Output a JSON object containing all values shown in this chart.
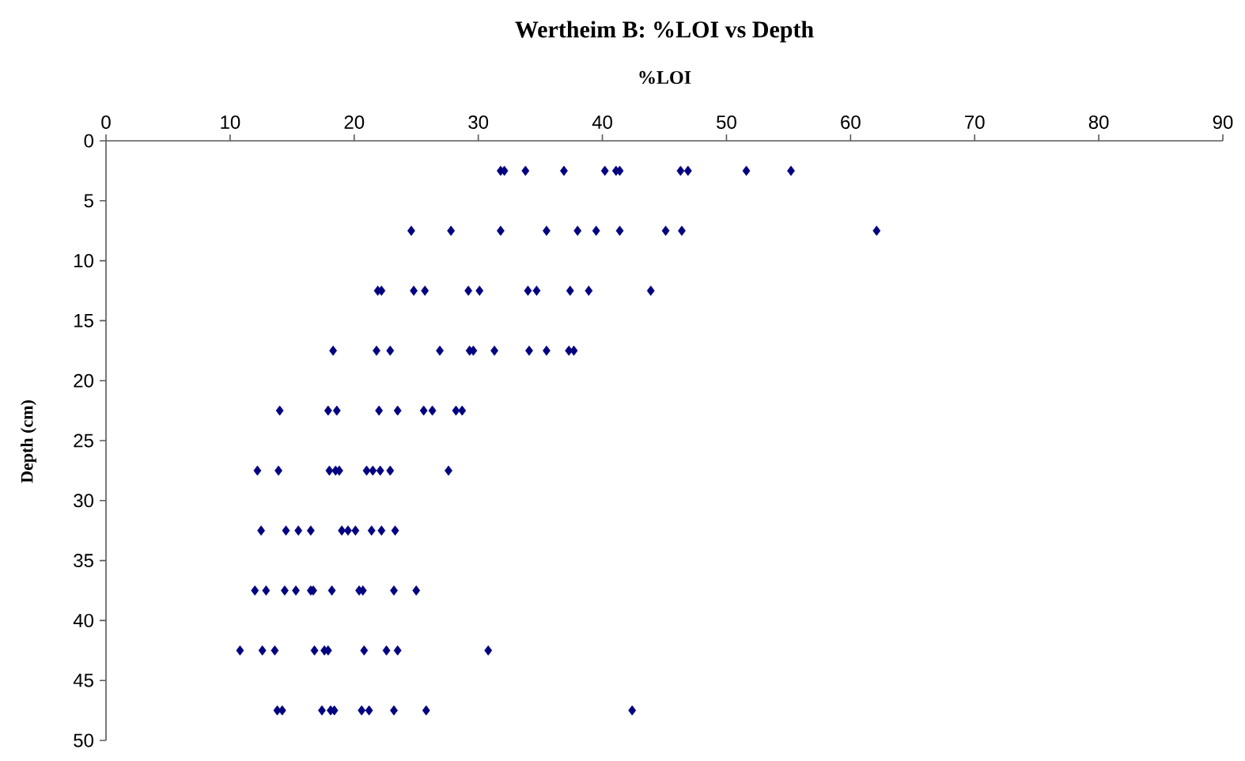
{
  "chart_data": {
    "type": "scatter",
    "title": "Wertheim B:  %LOI vs Depth",
    "xlabel": "%LOI",
    "ylabel": "Depth (cm)",
    "xlim": [
      0,
      90
    ],
    "xticks": [
      0,
      10,
      20,
      30,
      40,
      50,
      60,
      70,
      80,
      90
    ],
    "ylim": [
      50,
      0
    ],
    "yticks": [
      0,
      5,
      10,
      15,
      20,
      25,
      30,
      35,
      40,
      45,
      50
    ],
    "grid": false,
    "marker": "diamond",
    "series": [
      {
        "color": "#000080",
        "x": [
          31.8,
          32.1,
          33.8,
          36.9,
          40.2,
          41.1,
          41.4,
          46.3,
          46.9,
          51.6,
          55.2,
          24.6,
          27.8,
          31.8,
          35.5,
          38.0,
          39.5,
          41.4,
          45.1,
          46.4,
          62.1,
          21.9,
          22.2,
          24.8,
          25.7,
          29.2,
          30.1,
          34.0,
          34.7,
          37.4,
          38.9,
          43.9,
          18.3,
          21.8,
          22.9,
          26.9,
          29.3,
          29.6,
          31.3,
          34.1,
          35.5,
          37.3,
          37.7,
          14.0,
          17.9,
          18.6,
          22.0,
          23.5,
          25.6,
          26.3,
          28.2,
          28.7,
          12.2,
          13.9,
          18.0,
          18.5,
          18.8,
          21.0,
          21.5,
          22.1,
          22.9,
          27.6,
          12.5,
          14.5,
          15.5,
          16.5,
          19.0,
          19.5,
          20.1,
          21.4,
          22.2,
          23.3,
          12.0,
          12.9,
          14.4,
          15.3,
          16.5,
          16.7,
          18.2,
          20.4,
          20.7,
          23.2,
          25.0,
          10.8,
          12.6,
          13.6,
          16.8,
          17.6,
          17.9,
          20.8,
          22.6,
          23.5,
          30.8,
          13.8,
          14.2,
          17.4,
          18.1,
          18.4,
          20.6,
          21.2,
          23.2,
          25.8,
          42.4
        ],
        "values": [
          2.5,
          2.5,
          2.5,
          2.5,
          2.5,
          2.5,
          2.5,
          2.5,
          2.5,
          2.5,
          2.5,
          7.5,
          7.5,
          7.5,
          7.5,
          7.5,
          7.5,
          7.5,
          7.5,
          7.5,
          7.5,
          12.5,
          12.5,
          12.5,
          12.5,
          12.5,
          12.5,
          12.5,
          12.5,
          12.5,
          12.5,
          12.5,
          17.5,
          17.5,
          17.5,
          17.5,
          17.5,
          17.5,
          17.5,
          17.5,
          17.5,
          17.5,
          17.5,
          22.5,
          22.5,
          22.5,
          22.5,
          22.5,
          22.5,
          22.5,
          22.5,
          22.5,
          27.5,
          27.5,
          27.5,
          27.5,
          27.5,
          27.5,
          27.5,
          27.5,
          27.5,
          27.5,
          32.5,
          32.5,
          32.5,
          32.5,
          32.5,
          32.5,
          32.5,
          32.5,
          32.5,
          32.5,
          37.5,
          37.5,
          37.5,
          37.5,
          37.5,
          37.5,
          37.5,
          37.5,
          37.5,
          37.5,
          37.5,
          42.5,
          42.5,
          42.5,
          42.5,
          42.5,
          42.5,
          42.5,
          42.5,
          42.5,
          42.5,
          47.5,
          47.5,
          47.5,
          47.5,
          47.5,
          47.5,
          47.5,
          47.5,
          47.5,
          47.5
        ]
      }
    ]
  }
}
